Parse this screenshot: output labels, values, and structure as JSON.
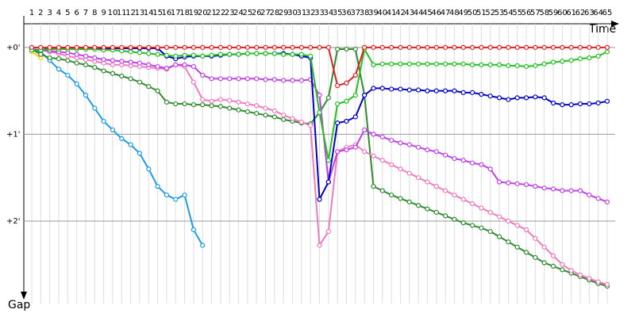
{
  "chart_data": {
    "type": "line",
    "x": [
      1,
      2,
      3,
      4,
      5,
      6,
      7,
      8,
      9,
      10,
      11,
      12,
      13,
      14,
      15,
      16,
      17,
      18,
      19,
      20,
      21,
      22,
      23,
      24,
      25,
      26,
      27,
      28,
      29,
      30,
      31,
      32,
      33,
      34,
      35,
      36,
      37,
      38,
      39,
      40,
      41,
      42,
      43,
      44,
      45,
      46,
      47,
      48,
      49,
      50,
      51,
      52,
      53,
      54,
      55,
      56,
      57,
      58,
      59,
      60,
      61,
      62,
      63,
      64,
      65
    ],
    "x_label": "Time",
    "y_label": "Gap",
    "xlim": [
      1,
      65
    ],
    "ylim": [
      -0.3,
      2.95
    ],
    "y_inverted": true,
    "yticks": [
      {
        "value": 0,
        "label": "+0'"
      },
      {
        "value": 1,
        "label": "+1'"
      },
      {
        "value": 2,
        "label": "+2'"
      }
    ],
    "grid": true,
    "series": [
      {
        "color": "#f0d000",
        "values": [
          0.05,
          0.12,
          null,
          null,
          null,
          null,
          null,
          null,
          null,
          null,
          null,
          null,
          null,
          null,
          null,
          null,
          null,
          null,
          null,
          null,
          null,
          null,
          null,
          null,
          null,
          null,
          null,
          null,
          null,
          null,
          null,
          null,
          null,
          null,
          null,
          null,
          null,
          null,
          null,
          null,
          null,
          null,
          null,
          null,
          null,
          null,
          null,
          null,
          null,
          null,
          null,
          null,
          null,
          null,
          null,
          null,
          null,
          null,
          null,
          null,
          null,
          null,
          null,
          null,
          null
        ]
      },
      {
        "color": "#1e9be6",
        "values": [
          0.02,
          0.05,
          0.15,
          0.25,
          0.32,
          0.42,
          0.55,
          0.7,
          0.85,
          0.95,
          1.05,
          1.12,
          1.22,
          1.4,
          1.6,
          1.7,
          1.75,
          1.7,
          2.1,
          2.28,
          null,
          null,
          null,
          null,
          null,
          null,
          null,
          null,
          null,
          null,
          null,
          null,
          null,
          null,
          null,
          null,
          null,
          null,
          null,
          null,
          null,
          null,
          null,
          null,
          null,
          null,
          null,
          null,
          null,
          null,
          null,
          null,
          null,
          null,
          null,
          null,
          null,
          null,
          null,
          null,
          null,
          null,
          null,
          null,
          null
        ]
      },
      {
        "color": "#2e8b2e",
        "values": [
          0.02,
          0.08,
          0.12,
          0.13,
          0.15,
          0.18,
          0.2,
          0.23,
          0.27,
          0.3,
          0.33,
          0.36,
          0.4,
          0.45,
          0.5,
          0.63,
          0.65,
          0.65,
          0.66,
          0.66,
          0.67,
          0.68,
          0.7,
          0.72,
          0.74,
          0.76,
          0.78,
          0.8,
          0.83,
          0.85,
          0.87,
          0.88,
          0.75,
          0.58,
          0.02,
          0.02,
          0.02,
          0.55,
          1.6,
          1.65,
          1.7,
          1.74,
          1.78,
          1.82,
          1.86,
          1.9,
          1.94,
          1.98,
          2.02,
          2.05,
          2.08,
          2.12,
          2.18,
          2.24,
          2.3,
          2.36,
          2.42,
          2.48,
          2.52,
          2.56,
          2.6,
          2.64,
          2.68,
          2.72,
          2.75
        ]
      },
      {
        "color": "#f07ac0",
        "values": [
          0.02,
          0.03,
          0.05,
          0.07,
          0.1,
          0.12,
          0.14,
          0.16,
          0.18,
          0.2,
          0.2,
          0.21,
          0.22,
          0.23,
          0.24,
          0.25,
          0.2,
          0.22,
          0.4,
          0.6,
          0.62,
          0.6,
          0.61,
          0.63,
          0.65,
          0.67,
          0.7,
          0.73,
          0.78,
          0.82,
          0.86,
          0.9,
          2.28,
          2.12,
          1.2,
          1.15,
          1.12,
          1.2,
          1.25,
          1.3,
          1.35,
          1.4,
          1.45,
          1.5,
          1.55,
          1.6,
          1.65,
          1.7,
          1.75,
          1.8,
          1.85,
          1.9,
          1.95,
          2.0,
          2.05,
          2.1,
          2.2,
          2.3,
          2.4,
          2.5,
          2.57,
          2.62,
          2.66,
          2.7,
          2.73
        ]
      },
      {
        "color": "#c040e8",
        "values": [
          0.02,
          0.03,
          0.04,
          0.05,
          0.06,
          0.08,
          0.1,
          0.12,
          0.14,
          0.15,
          0.16,
          0.17,
          0.18,
          0.2,
          0.22,
          0.24,
          0.2,
          0.2,
          0.22,
          0.32,
          0.36,
          0.36,
          0.36,
          0.36,
          0.36,
          0.36,
          0.37,
          0.37,
          0.38,
          0.38,
          0.38,
          0.37,
          0.55,
          1.55,
          1.2,
          1.18,
          1.15,
          0.95,
          1.0,
          1.03,
          1.07,
          1.1,
          1.12,
          1.15,
          1.18,
          1.2,
          1.24,
          1.28,
          1.3,
          1.33,
          1.35,
          1.4,
          1.55,
          1.56,
          1.57,
          1.58,
          1.6,
          1.62,
          1.63,
          1.65,
          1.65,
          1.65,
          1.7,
          1.74,
          1.78
        ]
      },
      {
        "color": "#0000c8",
        "values": [
          0.03,
          0.03,
          0.01,
          0.01,
          0.01,
          0.01,
          0.01,
          0.01,
          0.01,
          0.01,
          0.01,
          0.01,
          0.01,
          0.01,
          0.01,
          0.1,
          0.13,
          0.11,
          0.1,
          0.1,
          0.1,
          0.09,
          0.08,
          0.08,
          0.07,
          0.07,
          0.07,
          0.07,
          0.07,
          0.08,
          0.1,
          0.12,
          1.75,
          1.55,
          0.87,
          0.85,
          0.8,
          0.55,
          0.47,
          0.47,
          0.48,
          0.48,
          0.49,
          0.49,
          0.5,
          0.5,
          0.5,
          0.5,
          0.52,
          0.52,
          0.54,
          0.56,
          0.58,
          0.6,
          0.58,
          0.58,
          0.57,
          0.58,
          0.64,
          0.66,
          0.66,
          0.65,
          0.65,
          0.64,
          0.62
        ]
      },
      {
        "color": "#22c022",
        "values": [
          0.03,
          0.03,
          0.02,
          0.02,
          0.02,
          0.02,
          0.02,
          0.02,
          0.03,
          0.03,
          0.04,
          0.05,
          0.06,
          0.07,
          0.08,
          0.09,
          0.1,
          0.09,
          0.09,
          0.1,
          0.09,
          0.08,
          0.08,
          0.08,
          0.07,
          0.07,
          0.07,
          0.07,
          0.08,
          0.08,
          0.08,
          0.1,
          0.75,
          1.3,
          0.65,
          0.62,
          0.55,
          0.02,
          0.2,
          0.19,
          0.19,
          0.19,
          0.19,
          0.19,
          0.19,
          0.19,
          0.19,
          0.19,
          0.19,
          0.2,
          0.2,
          0.2,
          0.2,
          0.21,
          0.21,
          0.22,
          0.21,
          0.19,
          0.17,
          0.16,
          0.15,
          0.13,
          0.12,
          0.1,
          0.05
        ]
      },
      {
        "color": "#e02020",
        "values": [
          0,
          0,
          0,
          0,
          0,
          0,
          0,
          0,
          0,
          0,
          0,
          0,
          0,
          0,
          0,
          0,
          0,
          0,
          0,
          0,
          0,
          0,
          0,
          0,
          0,
          0,
          0,
          0,
          0,
          0,
          0,
          0,
          0,
          0,
          0.44,
          0.41,
          0.32,
          0,
          0,
          0,
          0,
          0,
          0,
          0,
          0,
          0,
          0,
          0,
          0,
          0,
          0,
          0,
          0,
          0,
          0,
          0,
          0,
          0,
          0,
          0,
          0,
          0,
          0,
          0,
          0
        ]
      }
    ]
  }
}
